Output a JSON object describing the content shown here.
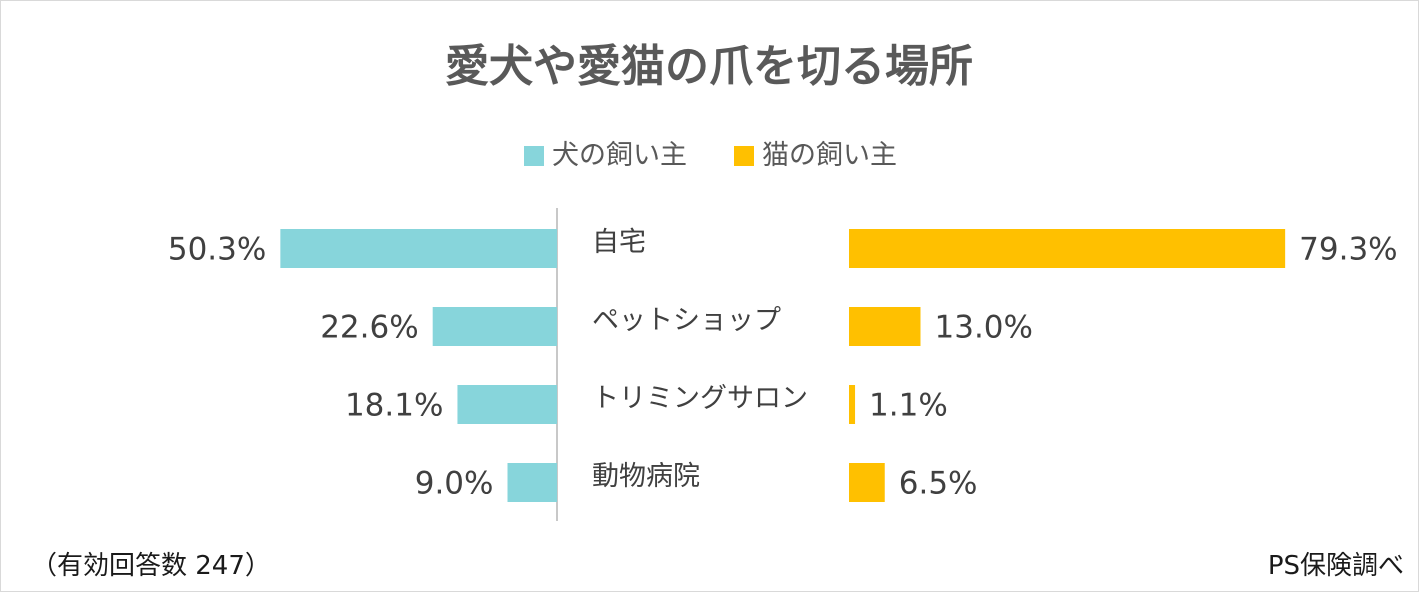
{
  "chart_data": {
    "type": "bar",
    "title": "愛犬や愛猫の爪を切る場所",
    "categories": [
      "自宅",
      "ペットショップ",
      "トリミングサロン",
      "動物病院"
    ],
    "series": [
      {
        "name": "犬の飼い主",
        "values": [
          50.3,
          22.6,
          18.1,
          9.0
        ],
        "labels": [
          "50.3%",
          "22.6%",
          "18.1%",
          "9.0%"
        ],
        "color": "#87D5DB"
      },
      {
        "name": "猫の飼い主",
        "values": [
          79.3,
          13.0,
          1.1,
          6.5
        ],
        "labels": [
          "79.3%",
          "13.0%",
          "1.1%",
          "6.5%"
        ],
        "color": "#FFC000"
      }
    ],
    "unit": "%",
    "legend_position": "top-center",
    "grid": false
  },
  "footer": {
    "note": "（有効回答数 247）",
    "source": "PS保険調べ"
  }
}
